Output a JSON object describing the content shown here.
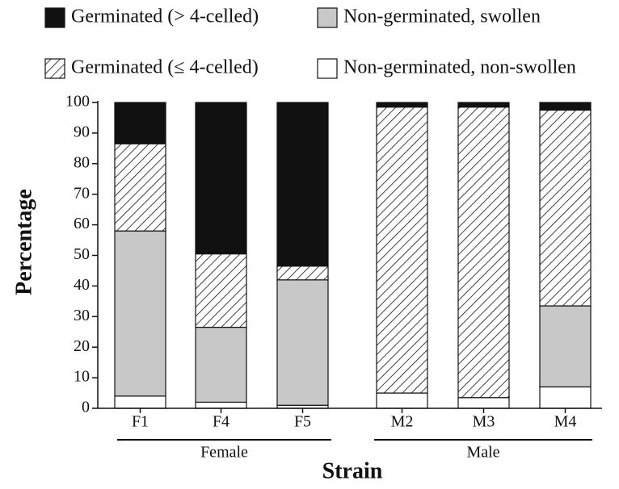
{
  "chart_data": {
    "type": "stacked_bar",
    "xlabel": "Strain",
    "ylabel": "Percentage",
    "categories": [
      "F1",
      "F4",
      "F5",
      "M2",
      "M3",
      "M4"
    ],
    "group_labels": [
      "Female",
      "Male"
    ],
    "series": [
      {
        "name": "Non-germinated, non-swollen",
        "color": "#ffffff",
        "values": [
          4,
          2,
          1,
          5,
          3.5,
          7
        ]
      },
      {
        "name": "Non-germinated, swollen",
        "color": "#c8c8c8",
        "values": [
          54,
          24.5,
          41,
          0,
          0,
          26.5
        ]
      },
      {
        "name": "Germinated (≤ 4-celled)",
        "color": "#ffffff",
        "pattern": "hatch",
        "values": [
          28.5,
          24,
          4.5,
          93.5,
          95,
          64
        ]
      },
      {
        "name": "Germinated (> 4-celled)",
        "color": "#111111",
        "values": [
          13.5,
          49.5,
          53.5,
          1.5,
          1.5,
          2.5
        ]
      }
    ],
    "ylim": [
      0,
      100
    ],
    "yticks": [
      0,
      10,
      20,
      30,
      40,
      50,
      60,
      70,
      80,
      90,
      100
    ]
  }
}
